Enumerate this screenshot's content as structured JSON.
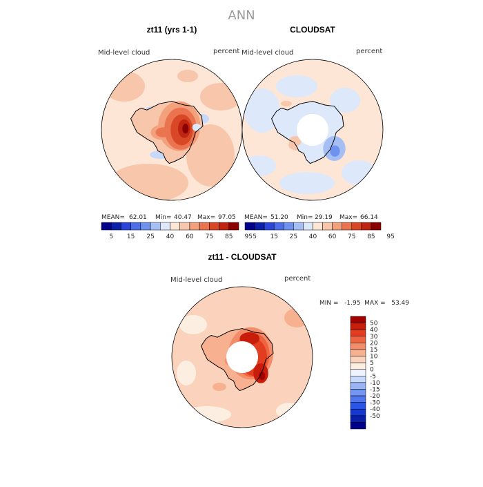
{
  "page": {
    "title": "ANN"
  },
  "panels": [
    {
      "id": "model",
      "title": "zt11 (yrs 1-1)",
      "field": "Mid-level cloud",
      "unit": "percent",
      "stats": {
        "mean_label": "MEAN=",
        "mean": "62.01",
        "min_label": "Min=",
        "min": "40.47",
        "max_label": "Max=",
        "max": "97.05"
      },
      "has_hole": false
    },
    {
      "id": "obs",
      "title": "CLOUDSAT",
      "field": "Mid-level cloud",
      "unit": "percent",
      "stats": {
        "mean_label": "MEAN=",
        "mean": "51.20",
        "min_label": "Min=",
        "min": "29.19",
        "max_label": "Max=",
        "max": "66.14"
      },
      "has_hole": true
    },
    {
      "id": "diff",
      "title": "zt11 - CLOUDSAT",
      "field": "Mid-level cloud",
      "unit": "percent",
      "stats_line": "MIN =   -1.95  MAX =   53.49",
      "has_hole": true
    }
  ],
  "abs_colorbar": {
    "colors": [
      "#00008b",
      "#0a1fa8",
      "#2b45d8",
      "#4d6ee8",
      "#6f92ee",
      "#a5bff4",
      "#dde8fb",
      "#fde6d6",
      "#f8c6ab",
      "#f3a07c",
      "#ea744f",
      "#d94826",
      "#bf2510",
      "#8b0000"
    ],
    "labels": [
      "5",
      "15",
      "25",
      "40",
      "60",
      "75",
      "85",
      "95"
    ]
  },
  "diff_colorbar": {
    "colors": [
      "#00008b",
      "#0a1fa8",
      "#1637d0",
      "#2b55e8",
      "#5076ee",
      "#7296f2",
      "#9ab5f6",
      "#c7d9fa",
      "#eef3fd",
      "#fdeee2",
      "#fbd3bc",
      "#f7b190",
      "#f38c69",
      "#ee6440",
      "#e23d1e",
      "#c91d0c",
      "#a30000"
    ],
    "labels": [
      "50",
      "40",
      "30",
      "20",
      "15",
      "10",
      "5",
      "0",
      "-5",
      "-10",
      "-15",
      "-20",
      "-30",
      "-40",
      "-50"
    ]
  },
  "chart_data": [
    {
      "type": "heatmap",
      "title": "zt11 (yrs 1-1)",
      "variable": "Mid-level cloud",
      "units": "percent",
      "projection": "south polar stereographic",
      "mean": 62.01,
      "min": 40.47,
      "max": 97.05,
      "levels": [
        5,
        15,
        25,
        40,
        60,
        75,
        85,
        95
      ]
    },
    {
      "type": "heatmap",
      "title": "CLOUDSAT",
      "variable": "Mid-level cloud",
      "units": "percent",
      "projection": "south polar stereographic",
      "mean": 51.2,
      "min": 29.19,
      "max": 66.14,
      "levels": [
        5,
        15,
        25,
        40,
        60,
        75,
        85,
        95
      ]
    },
    {
      "type": "heatmap",
      "title": "zt11 - CLOUDSAT",
      "variable": "Mid-level cloud",
      "units": "percent",
      "projection": "south polar stereographic",
      "min": -1.95,
      "max": 53.49,
      "levels": [
        -50,
        -40,
        -30,
        -20,
        -15,
        -10,
        -5,
        0,
        5,
        10,
        15,
        20,
        30,
        40,
        50
      ]
    }
  ]
}
